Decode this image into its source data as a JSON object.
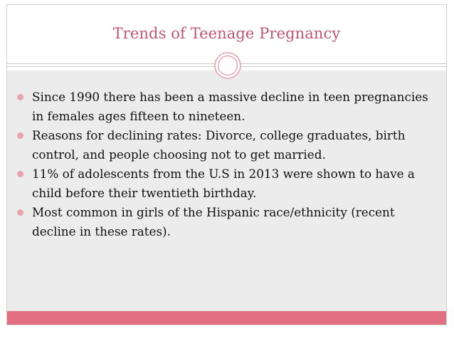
{
  "slide": {
    "title": "Trends of Teenage Pregnancy",
    "bullets": [
      "Since 1990 there has been a massive decline in teen pregnancies in females ages fifteen to nineteen.",
      "Reasons for declining rates: Divorce, college graduates, birth control, and people choosing not to get married.",
      "11% of adolescents from the U.S in 2013 were shown to have a child before their twentieth birthday.",
      "Most common in girls of the Hispanic race/ethnicity (recent decline in these rates)."
    ],
    "ornament_icon": "double-circle-ornament-icon",
    "bullet_icon": "round-bullet-icon"
  },
  "colors": {
    "title": "#c0566e",
    "content_background": "#ececec",
    "bullet": "#e8a3ad",
    "footer_band": "#e26f82",
    "ornament": "#e8a3ad"
  }
}
